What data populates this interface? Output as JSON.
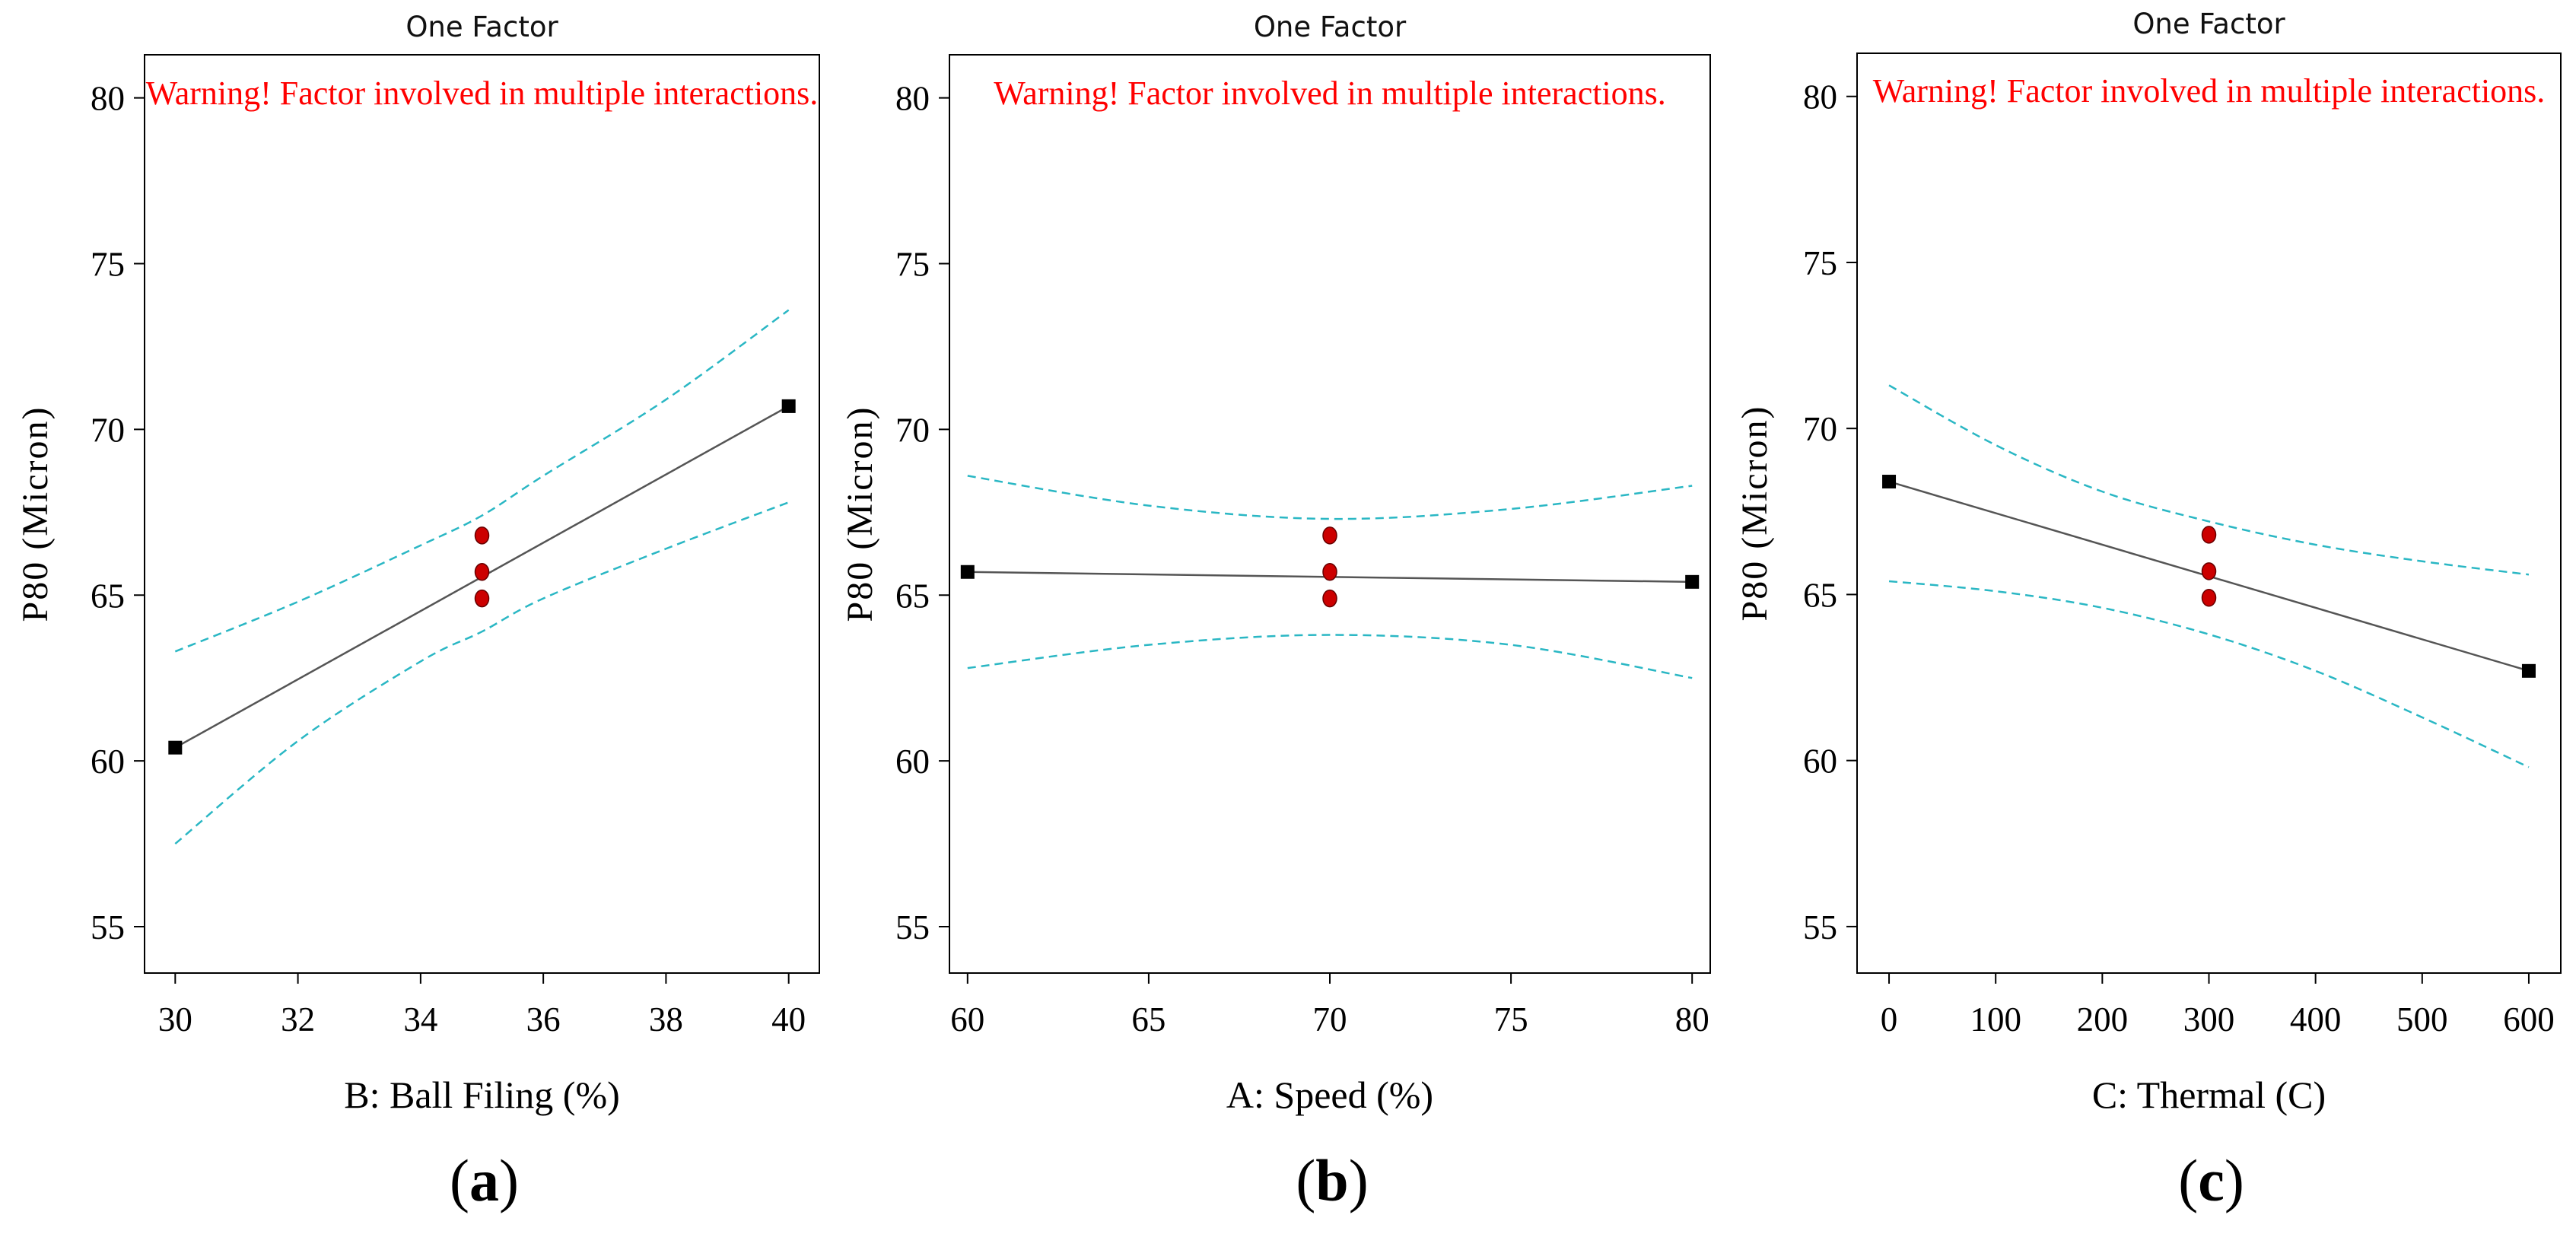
{
  "chart_data": [
    {
      "type": "line",
      "title": "One Factor",
      "warning": "Warning! Factor involved in multiple interactions.",
      "xlabel": "B: Ball Filing (%)",
      "ylabel": "P80 (Micron)",
      "caption_open": "(",
      "caption_letter": "a",
      "caption_close": ")",
      "xlim": [
        29.5,
        40.5
      ],
      "ylim": [
        53.6,
        81.3
      ],
      "xticks": [
        30,
        32,
        34,
        36,
        38,
        40
      ],
      "yticks": [
        55,
        60,
        65,
        70,
        75,
        80
      ],
      "series": [
        {
          "name": "prediction",
          "x": [
            30,
            40
          ],
          "y": [
            60.4,
            70.7
          ]
        },
        {
          "name": "upper CI",
          "x": [
            30,
            32,
            34,
            35,
            36,
            38,
            40
          ],
          "y": [
            63.3,
            64.8,
            66.5,
            67.4,
            68.6,
            70.9,
            73.6
          ]
        },
        {
          "name": "lower CI",
          "x": [
            30,
            32,
            34,
            35,
            36,
            38,
            40
          ],
          "y": [
            57.5,
            60.6,
            63.0,
            63.9,
            64.9,
            66.4,
            67.8
          ]
        }
      ],
      "design_points": {
        "x": [
          30,
          40
        ],
        "y": [
          60.4,
          70.7
        ]
      },
      "center_points": {
        "x": [
          35,
          35,
          35
        ],
        "y": [
          66.8,
          65.7,
          64.9
        ]
      }
    },
    {
      "type": "line",
      "title": "One Factor",
      "warning": "Warning! Factor involved in multiple interactions.",
      "xlabel": "A: Speed (%)",
      "ylabel": "P80 (Micron)",
      "caption_open": "(",
      "caption_letter": "b",
      "caption_close": ")",
      "xlim": [
        59.5,
        80.5
      ],
      "ylim": [
        53.6,
        81.3
      ],
      "xticks": [
        60,
        65,
        70,
        75,
        80
      ],
      "yticks": [
        55,
        60,
        65,
        70,
        75,
        80
      ],
      "series": [
        {
          "name": "prediction",
          "x": [
            60,
            80
          ],
          "y": [
            65.7,
            65.4
          ]
        },
        {
          "name": "upper CI",
          "x": [
            60,
            65,
            70,
            75,
            80
          ],
          "y": [
            68.6,
            67.7,
            67.3,
            67.6,
            68.3
          ]
        },
        {
          "name": "lower CI",
          "x": [
            60,
            65,
            70,
            75,
            80
          ],
          "y": [
            62.8,
            63.5,
            63.8,
            63.5,
            62.5
          ]
        }
      ],
      "design_points": {
        "x": [
          60,
          80
        ],
        "y": [
          65.7,
          65.4
        ]
      },
      "center_points": {
        "x": [
          70,
          70,
          70
        ],
        "y": [
          66.8,
          65.7,
          64.9
        ]
      }
    },
    {
      "type": "line",
      "title": "One Factor",
      "warning": "Warning! Factor involved in multiple interactions.",
      "xlabel": "C: Thermal  (C)",
      "ylabel": "P80 (Micron)",
      "caption_open": "(",
      "caption_letter": "c",
      "caption_close": ")",
      "xlim": [
        -30,
        630
      ],
      "ylim": [
        53.6,
        81.3
      ],
      "xticks": [
        0,
        100,
        200,
        300,
        400,
        500,
        600
      ],
      "yticks": [
        55,
        60,
        65,
        70,
        75,
        80
      ],
      "series": [
        {
          "name": "prediction",
          "x": [
            0,
            600
          ],
          "y": [
            68.4,
            62.7
          ]
        },
        {
          "name": "upper CI",
          "x": [
            0,
            100,
            200,
            300,
            400,
            500,
            600
          ],
          "y": [
            71.3,
            69.5,
            68.1,
            67.2,
            66.5,
            66.0,
            65.6
          ]
        },
        {
          "name": "lower CI",
          "x": [
            0,
            100,
            200,
            300,
            400,
            500,
            600
          ],
          "y": [
            65.4,
            65.1,
            64.6,
            63.8,
            62.7,
            61.3,
            59.8
          ]
        }
      ],
      "design_points": {
        "x": [
          0,
          600
        ],
        "y": [
          68.4,
          62.7
        ]
      },
      "center_points": {
        "x": [
          300,
          300,
          300
        ],
        "y": [
          66.8,
          65.7,
          64.9
        ]
      }
    }
  ],
  "colors": {
    "prediction_line": "#555555",
    "ci_line": "#2ab7c4",
    "design_point": "#000000",
    "center_point": "#cc0000",
    "center_point_stroke": "#660000",
    "warning": "#ff0000"
  }
}
